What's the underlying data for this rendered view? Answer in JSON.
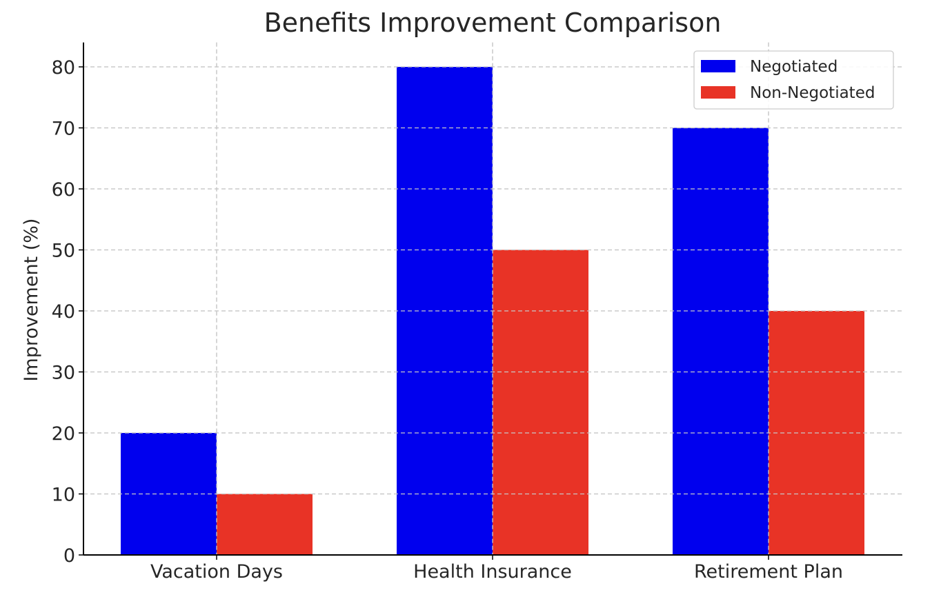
{
  "chart_data": {
    "type": "bar",
    "title": "Benefits Improvement Comparison",
    "xlabel": "",
    "ylabel": "Improvement (%)",
    "categories": [
      "Vacation Days",
      "Health Insurance",
      "Retirement Plan"
    ],
    "series": [
      {
        "name": "Negotiated",
        "values": [
          20,
          80,
          70
        ],
        "color": "#0000ee"
      },
      {
        "name": "Non-Negotiated",
        "values": [
          10,
          50,
          40
        ],
        "color": "#e83326"
      }
    ],
    "ylim": [
      0,
      84
    ],
    "yticks": [
      "0",
      "10",
      "20",
      "30",
      "40",
      "50",
      "60",
      "70",
      "80"
    ],
    "grid": true,
    "legend_position": "top-right"
  }
}
